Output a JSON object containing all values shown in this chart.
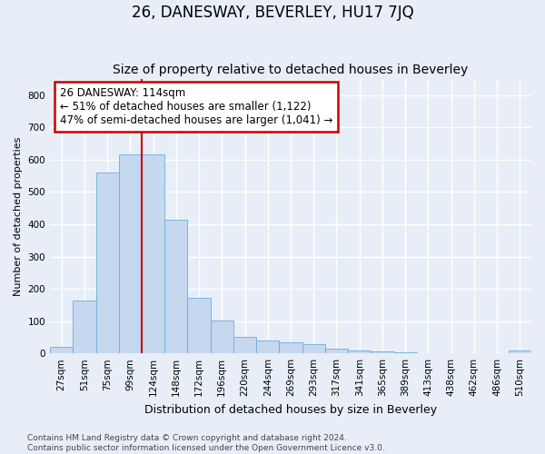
{
  "title": "26, DANESWAY, BEVERLEY, HU17 7JQ",
  "subtitle": "Size of property relative to detached houses in Beverley",
  "xlabel": "Distribution of detached houses by size in Beverley",
  "ylabel": "Number of detached properties",
  "footnote1": "Contains HM Land Registry data © Crown copyright and database right 2024.",
  "footnote2": "Contains public sector information licensed under the Open Government Licence v3.0.",
  "bar_labels": [
    "27sqm",
    "51sqm",
    "75sqm",
    "99sqm",
    "124sqm",
    "148sqm",
    "172sqm",
    "196sqm",
    "220sqm",
    "244sqm",
    "269sqm",
    "293sqm",
    "317sqm",
    "341sqm",
    "365sqm",
    "389sqm",
    "413sqm",
    "438sqm",
    "462sqm",
    "486sqm",
    "510sqm"
  ],
  "bar_values": [
    20,
    165,
    560,
    617,
    617,
    413,
    172,
    101,
    52,
    41,
    35,
    28,
    15,
    10,
    5,
    4,
    1,
    0,
    0,
    0,
    8
  ],
  "bar_color": "#c5d8f0",
  "bar_edge_color": "#6baed6",
  "vline_x_idx": 4,
  "vline_color": "#cc0000",
  "annotation_line1": "26 DANESWAY: 114sqm",
  "annotation_line2": "← 51% of detached houses are smaller (1,122)",
  "annotation_line3": "47% of semi-detached houses are larger (1,041) →",
  "annotation_box_color": "#ffffff",
  "annotation_box_edge": "#cc0000",
  "ylim": [
    0,
    850
  ],
  "yticks": [
    0,
    100,
    200,
    300,
    400,
    500,
    600,
    700,
    800
  ],
  "background_color": "#e8eef8",
  "grid_color": "#ffffff",
  "title_fontsize": 12,
  "subtitle_fontsize": 10,
  "axis_label_fontsize": 9,
  "ylabel_fontsize": 8,
  "tick_fontsize": 7.5,
  "annotation_fontsize": 8.5,
  "footnote_fontsize": 6.5
}
